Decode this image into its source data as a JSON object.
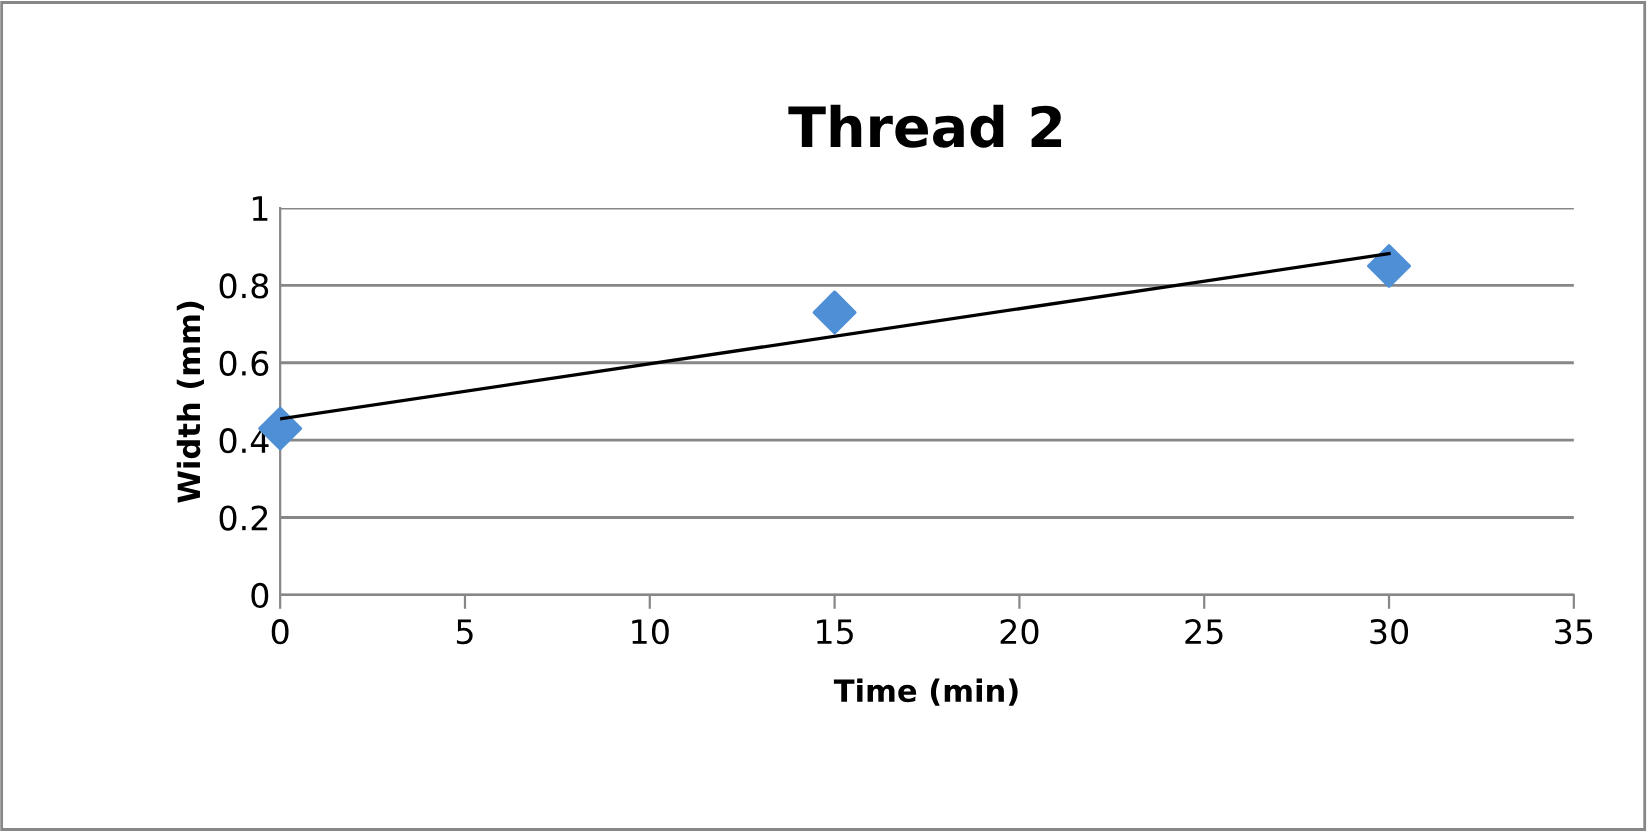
{
  "chart_data": {
    "type": "scatter",
    "title": "Thread 2",
    "xlabel": "Time (min)",
    "ylabel": "Width (mm)",
    "series": [
      {
        "color": "#4f8fd6",
        "marker": "diamond",
        "x": [
          0,
          15,
          30
        ],
        "values": [
          0.43,
          0.73,
          0.85
        ]
      },
      {
        "type": "line",
        "color": "#000000",
        "marker": "none",
        "x": [
          0,
          30
        ],
        "values": [
          0.455,
          0.882
        ]
      }
    ],
    "xlim": [
      0,
      35
    ],
    "xticks": [
      0,
      5,
      10,
      15,
      20,
      25,
      30,
      35
    ],
    "ylim": [
      0,
      1
    ],
    "yticks": [
      0,
      0.2,
      0.4,
      0.6,
      0.8,
      1
    ],
    "grid": "y",
    "legend": false
  }
}
